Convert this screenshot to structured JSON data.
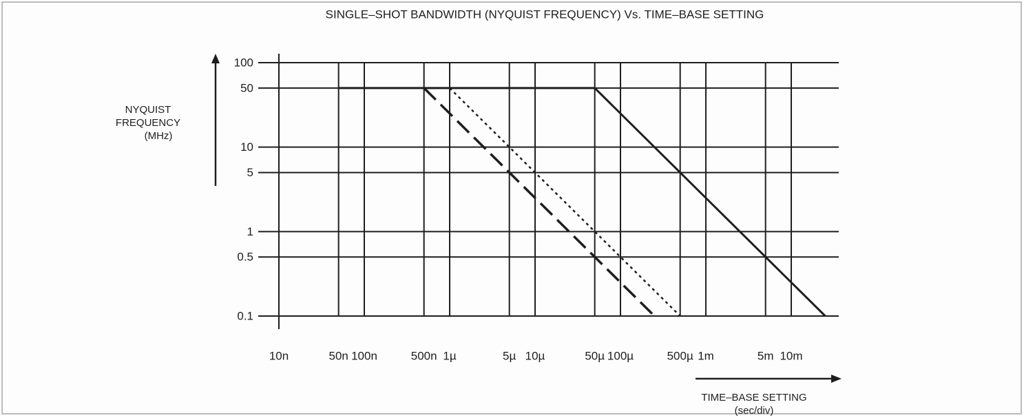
{
  "chart_data": {
    "type": "line",
    "title": "SINGLE–SHOT BANDWIDTH (NYQUIST FREQUENCY) Vs. TIME–BASE SETTING",
    "ylabel": [
      "NYQUIST",
      "FREQUENCY",
      "(MHz)"
    ],
    "xlabel": [
      "TIME–BASE SETTING",
      "(sec/div)"
    ],
    "xscale": "log",
    "yscale": "log",
    "grid": true,
    "xlim": [
      1e-08,
      0.036
    ],
    "ylim": [
      0.1,
      100
    ],
    "xticks": [
      {
        "value": 1e-08,
        "label": "10n"
      },
      {
        "value": 5e-08,
        "label": "50n"
      },
      {
        "value": 1e-07,
        "label": "100n"
      },
      {
        "value": 5e-07,
        "label": "500n"
      },
      {
        "value": 1e-06,
        "label": "1µ"
      },
      {
        "value": 5e-06,
        "label": "5µ"
      },
      {
        "value": 1e-05,
        "label": "10µ"
      },
      {
        "value": 5e-05,
        "label": "50µ"
      },
      {
        "value": 0.0001,
        "label": "100µ"
      },
      {
        "value": 0.0005,
        "label": "500µ"
      },
      {
        "value": 0.001,
        "label": "1m"
      },
      {
        "value": 0.005,
        "label": "5m"
      },
      {
        "value": 0.01,
        "label": "10m"
      }
    ],
    "yticks": [
      100,
      50,
      10,
      5,
      1,
      0.5,
      0.1
    ],
    "series": [
      {
        "style": "solid",
        "color": "#1e1e1e",
        "x": [
          5e-08,
          5e-05,
          0.025
        ],
        "values": [
          50,
          50,
          0.1
        ]
      },
      {
        "style": "dashed",
        "color": "#1e1e1e",
        "x": [
          5e-07,
          0.00025
        ],
        "values": [
          50,
          0.1
        ]
      },
      {
        "style": "dotted",
        "color": "#1e1e1e",
        "x": [
          1e-06,
          0.0005
        ],
        "values": [
          50,
          0.1
        ]
      }
    ]
  }
}
